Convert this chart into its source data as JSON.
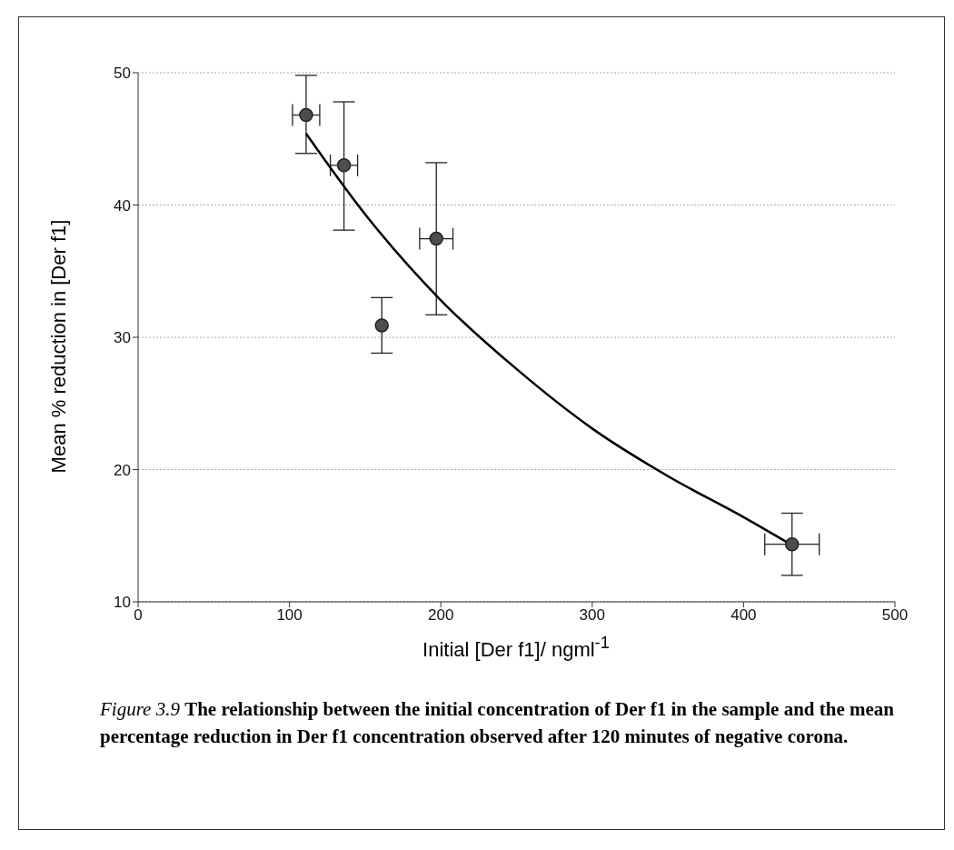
{
  "chart_data": {
    "type": "scatter",
    "xlabel": "Initial [Der f1]/ ngml$^{-1}$",
    "ylabel": "Mean % reduction in [Der f1]",
    "annotations": [
      "Figure 3.9",
      "The relationship between the initial concentration of Der f1 in the sample and the mean percentage reduction in Der f1 concentration observed after 120 minutes of negative corona."
    ],
    "xlim": [
      0,
      500
    ],
    "xticks": [
      0,
      100,
      200,
      300,
      400,
      500
    ],
    "ylim": [
      10,
      50
    ],
    "yticks": [
      10,
      20,
      30,
      40,
      50
    ],
    "grid": "y",
    "series": [
      {
        "marker": "circle",
        "color": "#4d4d4d",
        "x": [
          111,
          136,
          161,
          197,
          432
        ],
        "values": [
          46.8,
          43.0,
          30.9,
          37.45,
          14.35
        ],
        "errors": [
          [
            43.9,
            49.8
          ],
          [
            38.1,
            47.8
          ],
          [
            28.8,
            33.0
          ],
          [
            31.7,
            43.2
          ],
          [
            12.0,
            16.7
          ]
        ],
        "xerrors": [
          9,
          9,
          null,
          11,
          18
        ]
      },
      {
        "type": "line",
        "color": "#000000",
        "x": [
          111,
          150,
          200,
          250,
          300,
          350,
          400,
          431
        ],
        "values": [
          45.4,
          39.3,
          32.8,
          27.6,
          23.1,
          19.5,
          16.4,
          14.35
        ]
      }
    ]
  }
}
